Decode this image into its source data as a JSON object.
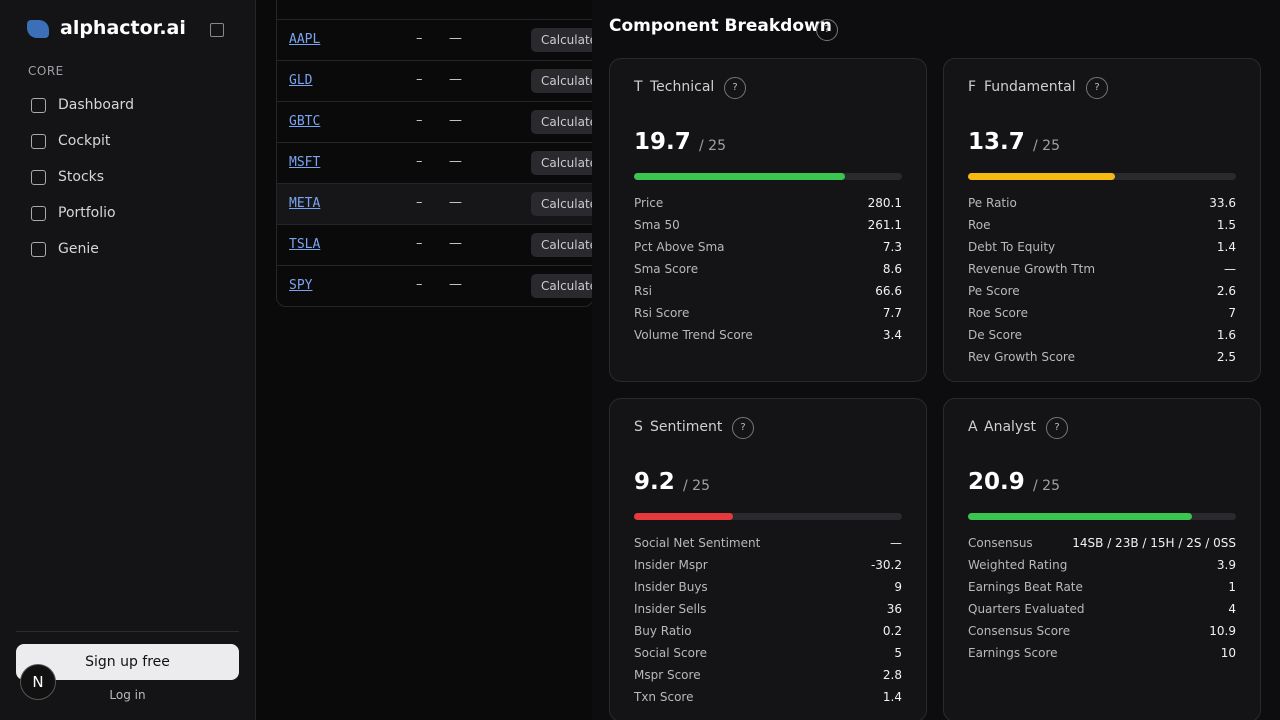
{
  "sidebar": {
    "brand": "alphactor.ai",
    "section": "CORE",
    "nav": [
      "Dashboard",
      "Cockpit",
      "Stocks",
      "Portfolio",
      "Genie"
    ],
    "signup": "Sign up free",
    "login": "Log in",
    "badge": "N"
  },
  "table": {
    "rows": [
      {
        "ticker": "AAPL",
        "a": "–",
        "b": "—",
        "action": "Calculate"
      },
      {
        "ticker": "GLD",
        "a": "–",
        "b": "—",
        "action": "Calculate"
      },
      {
        "ticker": "GBTC",
        "a": "–",
        "b": "—",
        "action": "Calculate"
      },
      {
        "ticker": "MSFT",
        "a": "–",
        "b": "—",
        "action": "Calculate"
      },
      {
        "ticker": "META",
        "a": "–",
        "b": "—",
        "action": "Calculate"
      },
      {
        "ticker": "TSLA",
        "a": "–",
        "b": "—",
        "action": "Calculate"
      },
      {
        "ticker": "SPY",
        "a": "–",
        "b": "—",
        "action": "Calculate"
      }
    ]
  },
  "breakdown": {
    "title": "Component Breakdown",
    "help": "?",
    "cards": [
      {
        "letter": "T",
        "name": "Technical",
        "help": "?",
        "score": 19.7,
        "max": {
          "value": 25,
          "label": "/ 25"
        },
        "color": "#3cc451",
        "metrics": [
          [
            "Price",
            280.1
          ],
          [
            "Sma 50",
            261.1
          ],
          [
            "Pct Above Sma",
            7.3
          ],
          [
            "Sma Score",
            8.6
          ],
          [
            "Rsi",
            66.6
          ],
          [
            "Rsi Score",
            7.7
          ],
          [
            "Volume Trend Score",
            3.4
          ]
        ]
      },
      {
        "letter": "F",
        "name": "Fundamental",
        "help": "?",
        "score": 13.7,
        "max": {
          "value": 25,
          "label": "/ 25"
        },
        "color": "#f6b911",
        "metrics": [
          [
            "Pe Ratio",
            33.6
          ],
          [
            "Roe",
            1.5
          ],
          [
            "Debt To Equity",
            1.4
          ],
          [
            "Revenue Growth Ttm",
            "—"
          ],
          [
            "Pe Score",
            2.6
          ],
          [
            "Roe Score",
            7
          ],
          [
            "De Score",
            1.6
          ],
          [
            "Rev Growth Score",
            2.5
          ]
        ]
      },
      {
        "letter": "S",
        "name": "Sentiment",
        "help": "?",
        "score": 9.2,
        "max": {
          "value": 25,
          "label": "/ 25"
        },
        "color": "#e5393b",
        "metrics": [
          [
            "Social Net Sentiment",
            "—"
          ],
          [
            "Insider Mspr",
            -30.2
          ],
          [
            "Insider Buys",
            9
          ],
          [
            "Insider Sells",
            36
          ],
          [
            "Buy Ratio",
            0.2
          ],
          [
            "Social Score",
            5
          ],
          [
            "Mspr Score",
            2.8
          ],
          [
            "Txn Score",
            1.4
          ]
        ]
      },
      {
        "letter": "A",
        "name": "Analyst",
        "help": "?",
        "score": 20.9,
        "max": {
          "value": 25,
          "label": "/ 25"
        },
        "color": "#3cc451",
        "metrics": [
          [
            "Consensus",
            "14SB / 23B / 15H / 2S / 0SS"
          ],
          [
            "Weighted Rating",
            3.9
          ],
          [
            "Earnings Beat Rate",
            1
          ],
          [
            "Quarters Evaluated",
            4
          ],
          [
            "Consensus Score",
            10.9
          ],
          [
            "Earnings Score",
            10
          ]
        ]
      }
    ]
  }
}
